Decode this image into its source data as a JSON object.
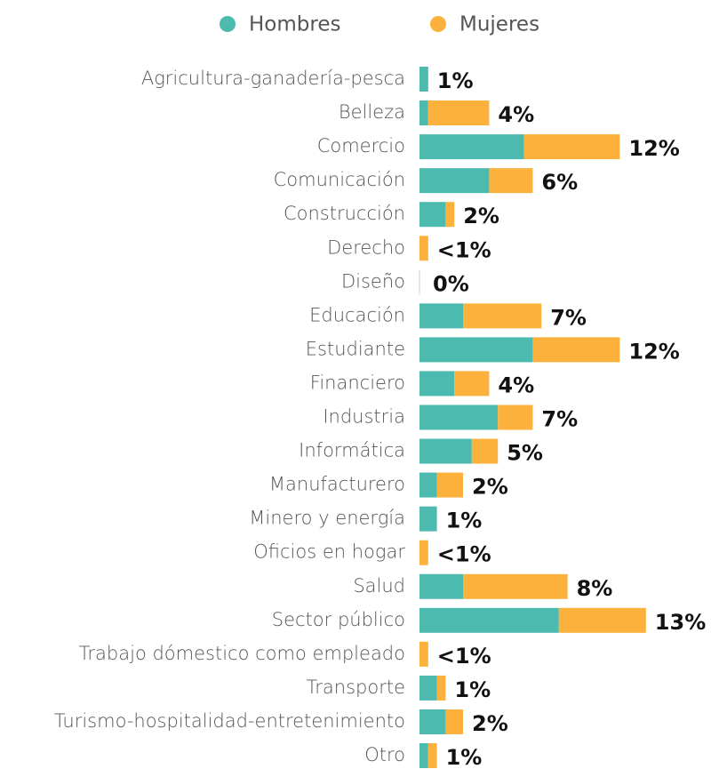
{
  "chart_data": {
    "type": "bar",
    "orientation": "horizontal",
    "stacked": true,
    "categories": [
      "Agricultura-ganadería-pesca",
      "Belleza",
      "Comercio",
      "Comunicación",
      "Construcción",
      "Derecho",
      "Diseño",
      "Educación",
      "Estudiante",
      "Financiero",
      "Industria",
      "Informática",
      "Manufacturero",
      "Minero y energía",
      "Oficios en hogar",
      "Salud",
      "Sector público",
      "Trabajo dómestico como empleado",
      "Transporte",
      "Turismo-hospitalidad-entretenimiento",
      "Otro"
    ],
    "series": [
      {
        "name": "Hombres",
        "color": "#4dbab0",
        "values": [
          0.5,
          0.5,
          6.0,
          4.0,
          1.5,
          0,
          0,
          2.5,
          6.5,
          2.0,
          4.5,
          3.0,
          1.0,
          1.0,
          0,
          2.5,
          8.0,
          0,
          1.0,
          1.5,
          0.5
        ]
      },
      {
        "name": "Mujeres",
        "color": "#fbb13c",
        "values": [
          0,
          3.5,
          5.5,
          2.5,
          0.5,
          0.5,
          0,
          4.5,
          5.0,
          2.0,
          2.0,
          1.5,
          1.5,
          0,
          0.5,
          6.0,
          5.0,
          0.5,
          0.5,
          1.0,
          0.5
        ]
      }
    ],
    "total_labels": [
      "1%",
      "4%",
      "12%",
      "6%",
      "2%",
      "<1%",
      "0%",
      "7%",
      "12%",
      "4%",
      "7%",
      "5%",
      "2%",
      "1%",
      "<1%",
      "8%",
      "13%",
      "<1%",
      "1%",
      "2%",
      "1%"
    ],
    "legend": "top"
  }
}
